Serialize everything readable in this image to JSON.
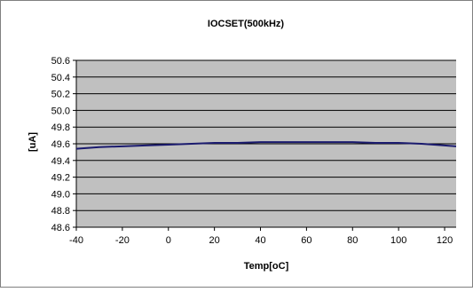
{
  "chart_data": {
    "type": "line",
    "title": "IOCSET(500kHz)",
    "xlabel": "Temp[oC]",
    "ylabel": "[uA]",
    "xlim": [
      -40,
      125
    ],
    "ylim": [
      48.6,
      50.6
    ],
    "xticks": [
      -40,
      -20,
      0,
      20,
      40,
      60,
      80,
      100,
      120
    ],
    "yticks": [
      48.6,
      48.8,
      49.0,
      49.2,
      49.4,
      49.6,
      49.8,
      50.0,
      50.2,
      50.4,
      50.6
    ],
    "grid": "horizontal",
    "legend": "none",
    "series": [
      {
        "x": [
          -40,
          -30,
          -20,
          -10,
          0,
          10,
          20,
          30,
          40,
          50,
          60,
          70,
          80,
          90,
          100,
          110,
          120,
          125
        ],
        "y": [
          49.54,
          49.56,
          49.57,
          49.58,
          49.59,
          49.6,
          49.61,
          49.61,
          49.62,
          49.62,
          49.62,
          49.62,
          49.62,
          49.61,
          49.61,
          49.6,
          49.58,
          49.57
        ],
        "color": "#1a1a6e"
      }
    ],
    "colors": {
      "plot_background": "#c0c0c0",
      "chart_background": "#ffffff",
      "gridline": "#000000",
      "border": "#808080"
    }
  }
}
